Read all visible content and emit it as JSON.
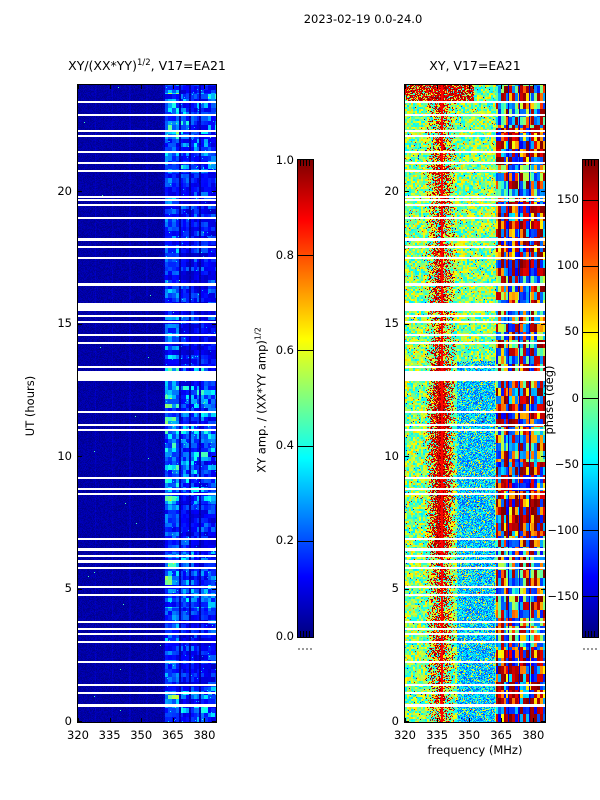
{
  "figure": {
    "title": "2023-02-19 0.0-24.0",
    "xlabel_shared": "frequency (MHz)"
  },
  "chart_data": [
    {
      "id": "amplitude_panel",
      "type": "heatmap",
      "title": {
        "base": "XY/(XX*YY)",
        "sup": "1/2",
        "rest": ", V17=EA21"
      },
      "ylabel": "UT (hours)",
      "xlim": [
        320,
        385
      ],
      "ylim": [
        0,
        24
      ],
      "xticks": [
        320,
        335,
        350,
        365,
        380
      ],
      "yticks": [
        0,
        5,
        10,
        15,
        20
      ],
      "colormap": "jet",
      "value_range": [
        0,
        1
      ],
      "colorbar": {
        "label": {
          "base": "XY amp. / (XX*YY amp)",
          "sup": "1/2"
        },
        "tick_values": [
          0.0,
          0.2,
          0.4,
          0.6,
          0.8,
          1.0
        ],
        "tick_labels": [
          "0.0",
          "0.2",
          "0.4",
          "0.6",
          "0.8",
          "1.0"
        ]
      },
      "features": {
        "background_amplitude": [
          0.015,
          0.06
        ],
        "rfi_band_mhz": [
          361,
          385
        ],
        "rfi_band_bright_mhz": [
          361,
          368.2
        ],
        "band_separators_mhz": [
          368.2,
          373.0,
          377.8
        ],
        "subband_line_mhz": [
          328.1,
          336.2,
          344.4,
          352.5,
          360.6
        ],
        "enhanced_ut_windows": [
          [
            0,
            1.3
          ],
          [
            4.3,
            6.4
          ],
          [
            8.2,
            13.4
          ],
          [
            20.7,
            23.7
          ]
        ],
        "base_band_activity": 0.55,
        "band_peak_amplitude": 0.65
      }
    },
    {
      "id": "phase_panel",
      "type": "heatmap",
      "title": {
        "base": "XY, V17=EA21",
        "sup": "",
        "rest": ""
      },
      "ylabel": "",
      "xlim": [
        320,
        385
      ],
      "ylim": [
        0,
        24
      ],
      "xticks": [
        320,
        335,
        350,
        365,
        380
      ],
      "yticks": [
        0,
        5,
        10,
        15,
        20
      ],
      "colormap": "jet",
      "value_range": [
        -180,
        180
      ],
      "colorbar": {
        "label": {
          "base": "phase (deg)",
          "sup": ""
        },
        "tick_values": [
          150,
          100,
          50,
          0,
          -50,
          -100,
          -150
        ],
        "tick_labels": [
          "150",
          "100",
          "50",
          "0",
          "−50",
          "−100",
          "−150"
        ]
      },
      "features": {
        "background_phase_deg": [
          -55,
          60
        ],
        "red_band_mhz": [
          329,
          344
        ],
        "red_band_center_mhz": 336.5,
        "red_band_strong_ut": [
          6.3,
          13.6
        ],
        "top_red_ut_start": 23.35,
        "orange_line_mhz": 337,
        "orange_line_phase_deg": 135,
        "blue_region_mhz": [
          344,
          362
        ],
        "blue_region_ut": [
          0,
          13.6
        ],
        "structured_region_mhz": [
          362.5,
          385
        ],
        "separators_mhz": [
          368.3,
          373.2,
          378.0
        ]
      }
    }
  ],
  "shared": {
    "data_gaps_ut": [
      [
        0.55,
        0.1
      ],
      [
        1.05,
        0.08
      ],
      [
        1.35,
        0.08
      ],
      [
        2.2,
        0.08
      ],
      [
        2.95,
        0.08
      ],
      [
        3.25,
        0.08
      ],
      [
        3.45,
        0.08
      ],
      [
        3.7,
        0.08
      ],
      [
        4.75,
        0.08
      ],
      [
        5.05,
        0.08
      ],
      [
        5.75,
        0.08
      ],
      [
        6.0,
        0.08
      ],
      [
        6.2,
        0.08
      ],
      [
        6.45,
        0.08
      ],
      [
        6.85,
        0.08
      ],
      [
        8.55,
        0.08
      ],
      [
        8.75,
        0.08
      ],
      [
        9.15,
        0.08
      ],
      [
        10.95,
        0.08
      ],
      [
        11.15,
        0.08
      ],
      [
        11.65,
        0.08
      ],
      [
        12.85,
        0.3
      ],
      [
        13.15,
        0.08
      ],
      [
        13.35,
        0.08
      ],
      [
        14.25,
        0.08
      ],
      [
        14.55,
        0.08
      ],
      [
        15.05,
        0.08
      ],
      [
        15.25,
        0.08
      ],
      [
        15.5,
        0.3
      ],
      [
        16.45,
        0.08
      ],
      [
        17.45,
        0.08
      ],
      [
        17.85,
        0.08
      ],
      [
        18.15,
        0.08
      ],
      [
        18.95,
        0.08
      ],
      [
        19.45,
        0.08
      ],
      [
        19.65,
        0.08
      ],
      [
        19.75,
        0.08
      ],
      [
        20.75,
        0.08
      ],
      [
        21.05,
        0.08
      ],
      [
        21.45,
        0.08
      ],
      [
        22.05,
        0.08
      ],
      [
        22.25,
        0.08
      ],
      [
        22.85,
        0.08
      ],
      [
        23.35,
        0.08
      ]
    ]
  }
}
